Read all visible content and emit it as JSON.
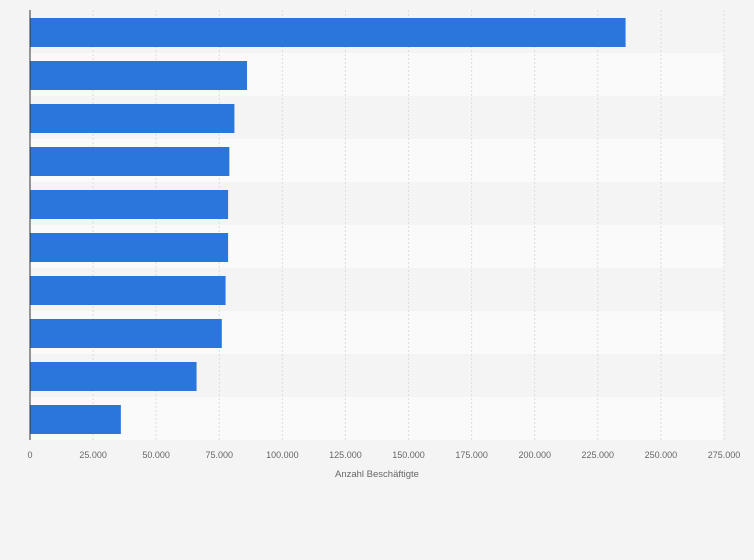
{
  "chart_data": {
    "type": "bar",
    "orientation": "horizontal",
    "categories": [
      "",
      "",
      "",
      "",
      "",
      "",
      "",
      "",
      "",
      ""
    ],
    "values": [
      236000,
      86000,
      81000,
      79000,
      78500,
      78500,
      77500,
      76000,
      66000,
      36000
    ],
    "xlabel": "Anzahl Beschäftigte",
    "ylabel": "",
    "xlim": [
      0,
      275000
    ],
    "xticks": [
      0,
      25000,
      50000,
      75000,
      100000,
      125000,
      150000,
      175000,
      200000,
      225000,
      250000,
      275000
    ],
    "xtick_labels": [
      "0",
      "25.000",
      "50.000",
      "75.000",
      "100.000",
      "125.000",
      "150.000",
      "175.000",
      "200.000",
      "225.000",
      "250.000",
      "275.000"
    ],
    "grid": true,
    "legend": "none",
    "bar_color": "#2a76dd",
    "band_colors": [
      "#f4f4f4",
      "#fafafa"
    ]
  }
}
